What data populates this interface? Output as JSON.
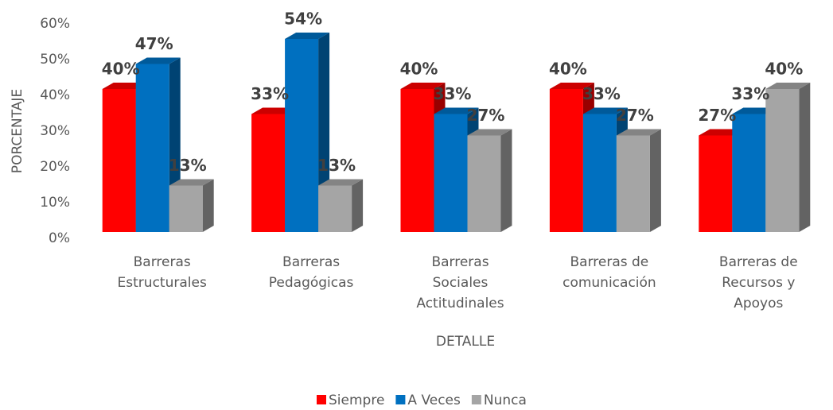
{
  "chart_data": {
    "type": "bar3d",
    "y_label": "PORCENTAJE",
    "x_label": "DETALLE",
    "categories": [
      "Barreras Estructurales",
      "Barreras Pedagógicas",
      "Barreras Sociales Actitudinales",
      "Barreras de comunicación",
      "Barreras de Recursos y Apoyos"
    ],
    "series": [
      {
        "name": "Siempre",
        "color": "#ff0000",
        "values": [
          40,
          33,
          40,
          40,
          27
        ],
        "value_labels": [
          "40%",
          "33%",
          "40%",
          "40%",
          "27%"
        ]
      },
      {
        "name": "A Veces",
        "color": "#0070c0",
        "values": [
          47,
          54,
          33,
          33,
          33
        ],
        "value_labels": [
          "47%",
          "54%",
          "33%",
          "33%",
          "33%"
        ]
      },
      {
        "name": "Nunca",
        "color": "#a5a5a5",
        "values": [
          13,
          13,
          27,
          27,
          40
        ],
        "value_labels": [
          "13%",
          "13%",
          "27%",
          "27%",
          "40%"
        ]
      }
    ],
    "ylim": [
      0,
      60
    ],
    "yticks": [
      {
        "value": 0,
        "label": "0%"
      },
      {
        "value": 10,
        "label": "10%"
      },
      {
        "value": 20,
        "label": "20%"
      },
      {
        "value": 30,
        "label": "30%"
      },
      {
        "value": 40,
        "label": "40%"
      },
      {
        "value": 50,
        "label": "50%"
      },
      {
        "value": 60,
        "label": "60%"
      }
    ],
    "legend": "bottom"
  }
}
